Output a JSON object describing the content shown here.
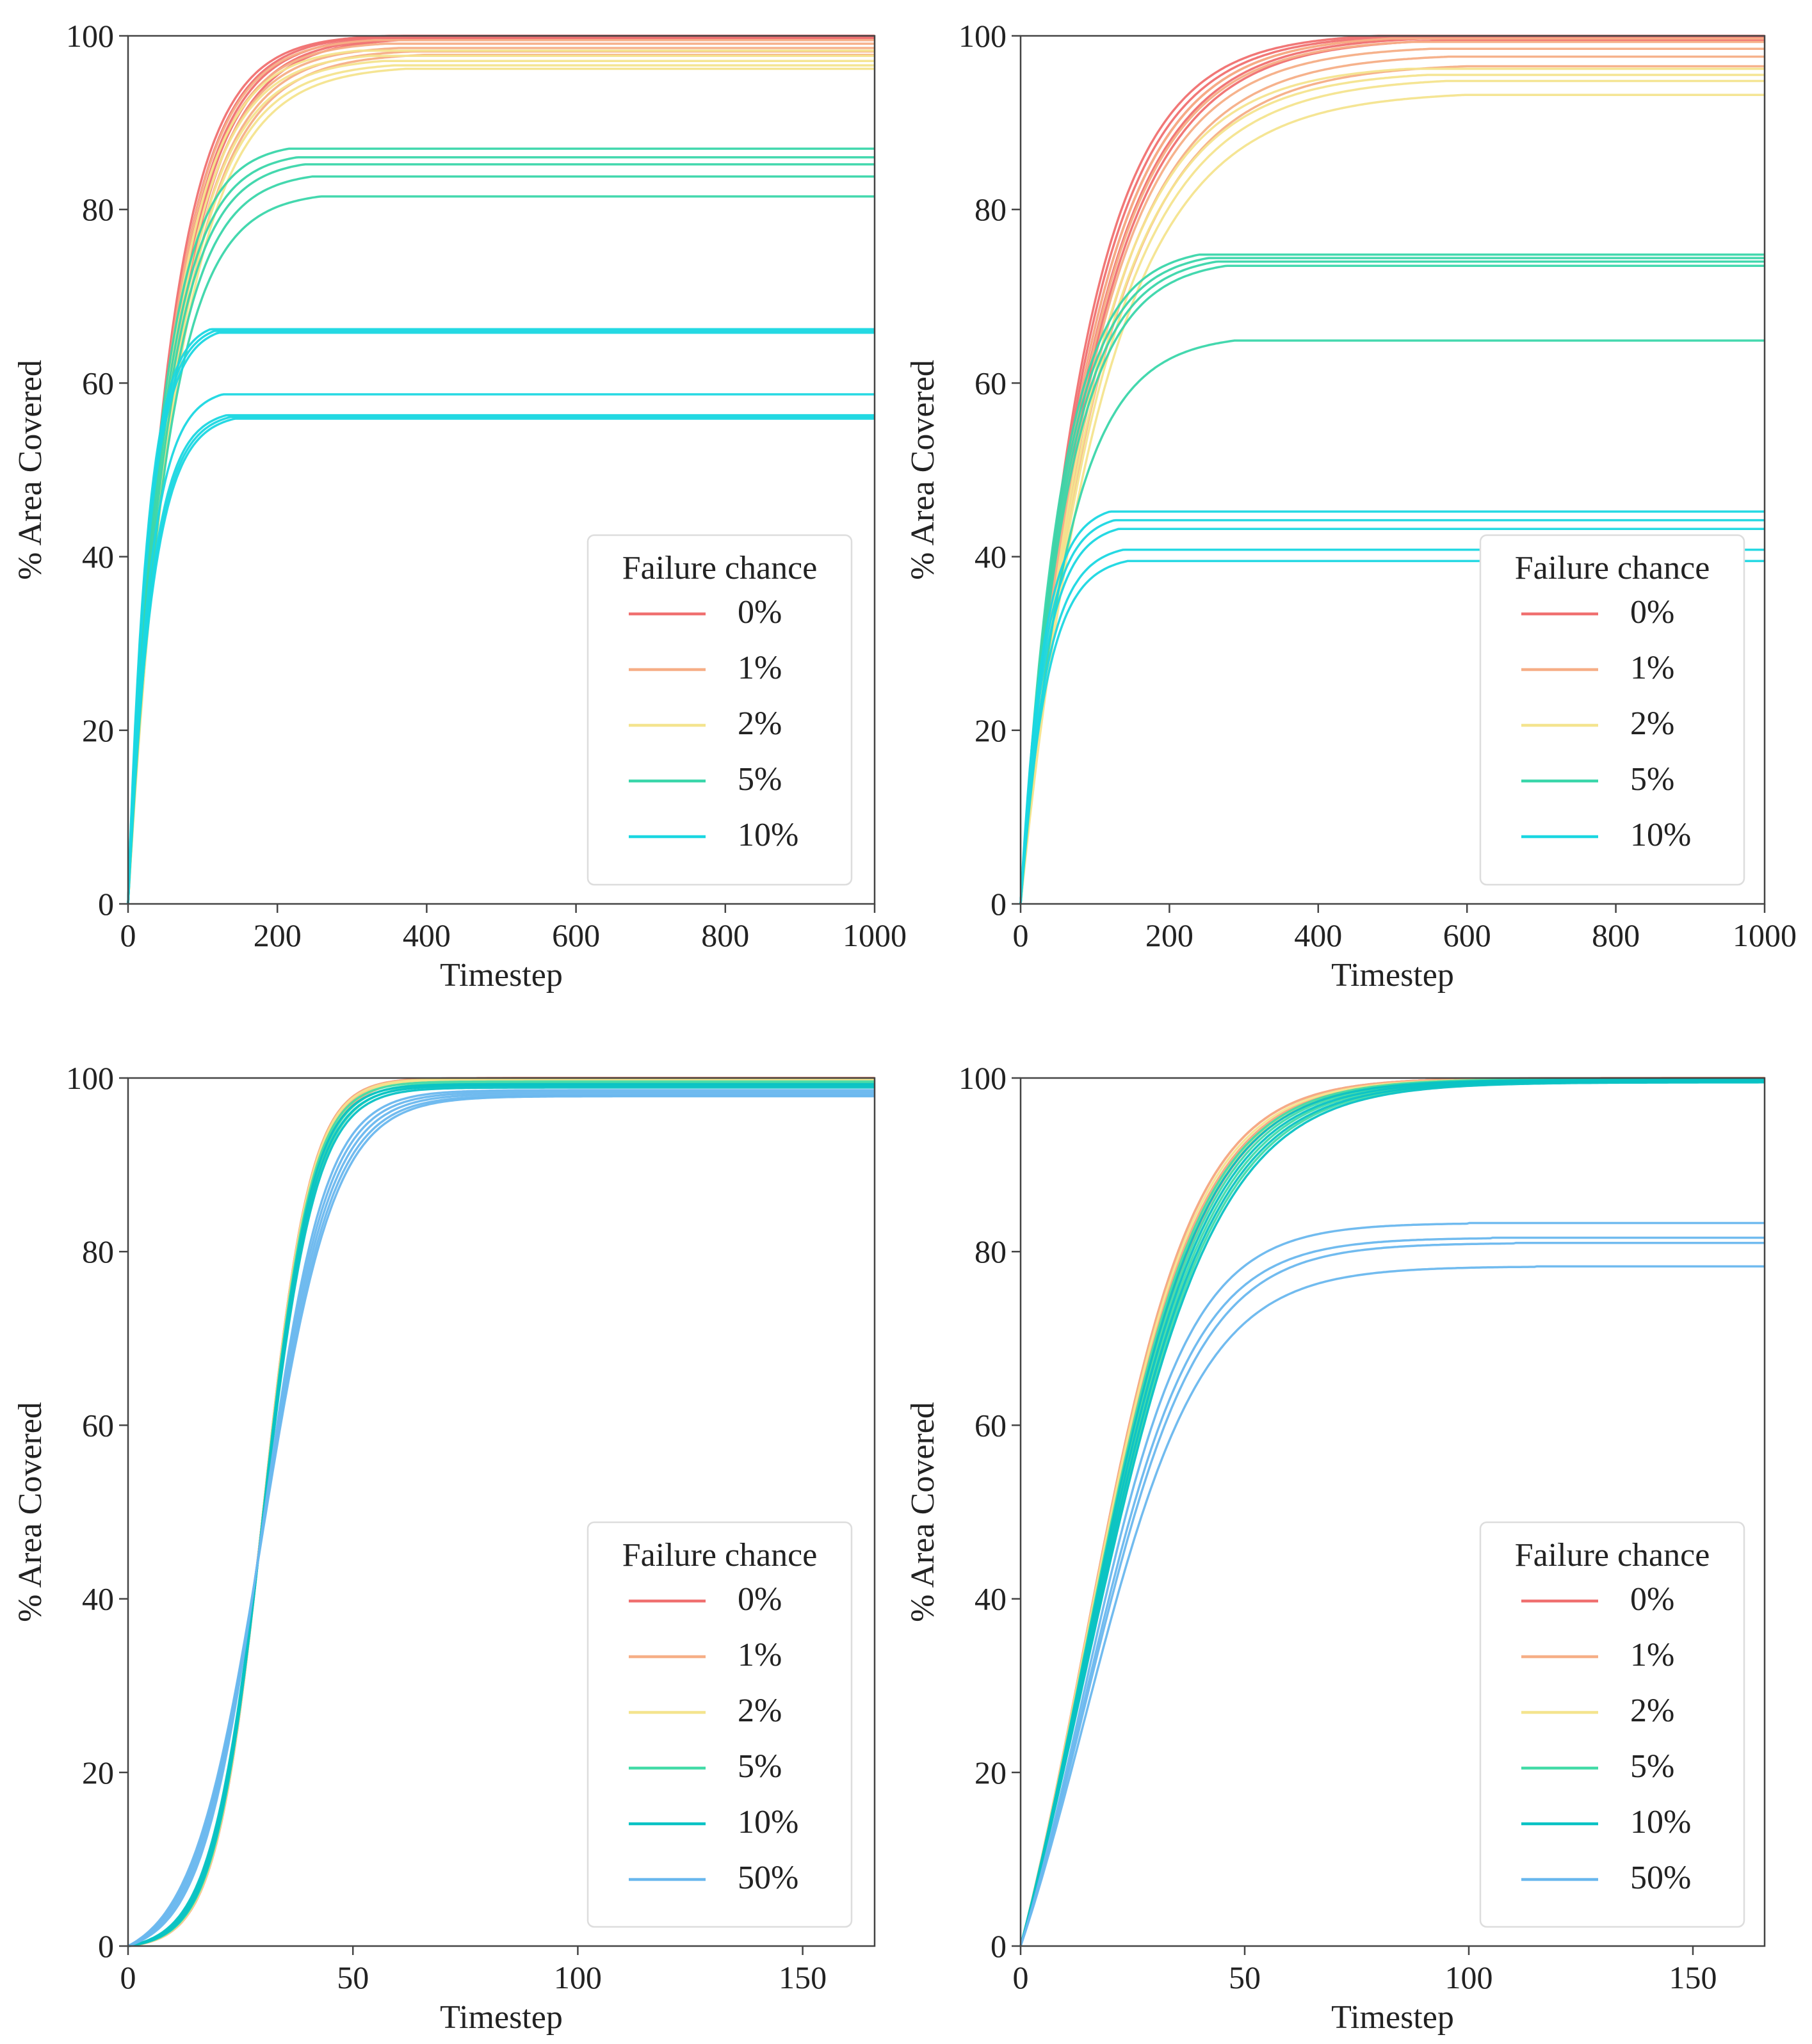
{
  "colors": {
    "p0": "#f07070",
    "p1": "#f6ae86",
    "p2": "#f4e48e",
    "p5": "#3ad6aa",
    "p10": "#1ad7e1",
    "p5b": "#43dba7",
    "p10b": "#08c2c4",
    "p50": "#69b7ee",
    "axis": "#444444",
    "text": "#222222"
  },
  "chart_data": [
    {
      "id": "top-left",
      "type": "line",
      "xlabel": "Timestep",
      "ylabel": "% Area Covered",
      "xlim": [
        0,
        1000
      ],
      "ylim": [
        0,
        100
      ],
      "xticks": [
        0,
        200,
        400,
        600,
        800,
        1000
      ],
      "yticks": [
        0,
        20,
        40,
        60,
        80,
        100
      ],
      "grid": false,
      "legend": {
        "title": "Failure chance",
        "position": "lower-right",
        "entries": [
          {
            "label": "0%",
            "color_key": "p0"
          },
          {
            "label": "1%",
            "color_key": "p1"
          },
          {
            "label": "2%",
            "color_key": "p2"
          },
          {
            "label": "5%",
            "color_key": "p5"
          },
          {
            "label": "10%",
            "color_key": "p10"
          }
        ]
      },
      "series": [
        {
          "name": "0%",
          "color_key": "p0",
          "plateaus": [
            100,
            100,
            99.9,
            99.8,
            99.7
          ],
          "tau": 55,
          "sat": 350
        },
        {
          "name": "1%",
          "color_key": "p1",
          "plateaus": [
            99.5,
            99.1,
            98.6,
            98.2,
            97.8
          ],
          "tau": 57,
          "sat": 330
        },
        {
          "name": "2%",
          "color_key": "p2",
          "plateaus": [
            98.3,
            97.7,
            97.1,
            96.6,
            96.2
          ],
          "tau": 58,
          "sat": 310
        },
        {
          "name": "5%",
          "color_key": "p5",
          "plateaus": [
            87,
            86,
            85.2,
            83.8,
            81.5
          ],
          "tau": 45,
          "sat": 215
        },
        {
          "name": "10%",
          "color_key": "p10",
          "plateaus": [
            66.2,
            66,
            65.8,
            58.7,
            56.3,
            56.1,
            55.9
          ],
          "tau": 26,
          "sat": 110
        }
      ]
    },
    {
      "id": "top-right",
      "type": "line",
      "xlabel": "Timestep",
      "ylabel": "% Area Covered",
      "xlim": [
        0,
        1000
      ],
      "ylim": [
        0,
        100
      ],
      "xticks": [
        0,
        200,
        400,
        600,
        800,
        1000
      ],
      "yticks": [
        0,
        20,
        40,
        60,
        80,
        100
      ],
      "grid": false,
      "legend": {
        "title": "Failure chance",
        "position": "lower-right",
        "entries": [
          {
            "label": "0%",
            "color_key": "p0"
          },
          {
            "label": "1%",
            "color_key": "p1"
          },
          {
            "label": "2%",
            "color_key": "p2"
          },
          {
            "label": "5%",
            "color_key": "p5"
          },
          {
            "label": "10%",
            "color_key": "p10"
          }
        ]
      },
      "series": [
        {
          "name": "0%",
          "color_key": "p0",
          "plateaus": [
            100,
            99.9,
            99.8,
            99.7,
            99.5
          ],
          "tau": 85,
          "sat": 480
        },
        {
          "name": "1%",
          "color_key": "p1",
          "plateaus": [
            99.7,
            99.3,
            98.5,
            97.6,
            96.5
          ],
          "tau": 92,
          "sat": 500
        },
        {
          "name": "2%",
          "color_key": "p2",
          "plateaus": [
            96.2,
            95.5,
            94.8,
            93.2
          ],
          "tau": 100,
          "sat": 520
        },
        {
          "name": "5%",
          "color_key": "p5",
          "plateaus": [
            74.8,
            74.4,
            74,
            73.5,
            64.9
          ],
          "tau": 55,
          "sat": 240
        },
        {
          "name": "10%",
          "color_key": "p10",
          "plateaus": [
            45.2,
            44.2,
            43.2,
            40.8,
            39.5
          ],
          "tau": 30,
          "sat": 120
        }
      ]
    },
    {
      "id": "bottom-left",
      "type": "line",
      "xlabel": "Timestep",
      "ylabel": "% Area Covered",
      "xlim": [
        0,
        166
      ],
      "ylim": [
        0,
        100
      ],
      "xticks": [
        0,
        50,
        100,
        150
      ],
      "yticks": [
        0,
        20,
        40,
        60,
        80,
        100
      ],
      "grid": false,
      "legend": {
        "title": "Failure chance",
        "position": "lower-right",
        "entries": [
          {
            "label": "0%",
            "color_key": "p0"
          },
          {
            "label": "1%",
            "color_key": "p1"
          },
          {
            "label": "2%",
            "color_key": "p2"
          },
          {
            "label": "5%",
            "color_key": "p5b"
          },
          {
            "label": "10%",
            "color_key": "p10b"
          },
          {
            "label": "50%",
            "color_key": "p50"
          }
        ]
      },
      "series": [
        {
          "name": "0%",
          "color_key": "p0",
          "plateaus": [
            100,
            100,
            99.9
          ],
          "tau": 11.5,
          "sat": 85,
          "ramp": 30
        },
        {
          "name": "1%",
          "color_key": "p1",
          "plateaus": [
            100,
            99.9,
            99.8
          ],
          "tau": 11.5,
          "sat": 85,
          "ramp": 30
        },
        {
          "name": "2%",
          "color_key": "p2",
          "plateaus": [
            99.9,
            99.8
          ],
          "tau": 11.6,
          "sat": 85,
          "ramp": 30
        },
        {
          "name": "5%",
          "color_key": "p5b",
          "plateaus": [
            99.6,
            99.4,
            99.2
          ],
          "tau": 11.8,
          "sat": 88,
          "ramp": 30
        },
        {
          "name": "10%",
          "color_key": "p10b",
          "plateaus": [
            99.3,
            99.1,
            98.9
          ],
          "tau": 12,
          "sat": 90,
          "ramp": 30
        },
        {
          "name": "50%",
          "color_key": "p50",
          "plateaus": [
            98.6,
            98.4,
            98.2,
            98,
            97.9
          ],
          "tau": 15,
          "sat": 100,
          "ramp": 30
        }
      ]
    },
    {
      "id": "bottom-right",
      "type": "line",
      "xlabel": "Timestep",
      "ylabel": "% Area Covered",
      "xlim": [
        0,
        166
      ],
      "ylim": [
        0,
        100
      ],
      "xticks": [
        0,
        50,
        100,
        150
      ],
      "yticks": [
        0,
        20,
        40,
        60,
        80,
        100
      ],
      "grid": false,
      "legend": {
        "title": "Failure chance",
        "position": "lower-right",
        "entries": [
          {
            "label": "0%",
            "color_key": "p0"
          },
          {
            "label": "1%",
            "color_key": "p1"
          },
          {
            "label": "2%",
            "color_key": "p2"
          },
          {
            "label": "5%",
            "color_key": "p5b"
          },
          {
            "label": "10%",
            "color_key": "p10b"
          },
          {
            "label": "50%",
            "color_key": "p50"
          }
        ]
      },
      "series": [
        {
          "name": "0%",
          "color_key": "p0",
          "plateaus": [
            100,
            99.9,
            99.9
          ],
          "tau": 27,
          "sat": 150,
          "ramp": 14
        },
        {
          "name": "1%",
          "color_key": "p1",
          "plateaus": [
            100,
            99.9
          ],
          "tau": 27,
          "sat": 150,
          "ramp": 14
        },
        {
          "name": "2%",
          "color_key": "p2",
          "plateaus": [
            99.9,
            99.8
          ],
          "tau": 27.5,
          "sat": 150,
          "ramp": 14
        },
        {
          "name": "5%",
          "color_key": "p5b",
          "plateaus": [
            99.9,
            99.8,
            99.7,
            99.6
          ],
          "tau": 28.5,
          "sat": 155,
          "ramp": 14
        },
        {
          "name": "10%",
          "color_key": "p10b",
          "plateaus": [
            99.8,
            99.7,
            99.6,
            99.5
          ],
          "tau": 29,
          "sat": 155,
          "ramp": 14
        },
        {
          "name": "50%",
          "color_key": "p50",
          "plateaus": [
            83.3,
            81.6,
            81,
            78.3
          ],
          "tau": 26,
          "sat": 100,
          "ramp": 14
        }
      ]
    }
  ]
}
